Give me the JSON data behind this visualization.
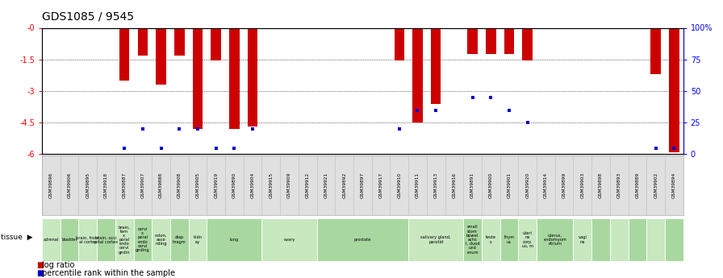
{
  "title": "GDS1085 / 9545",
  "gsm_labels": [
    "GSM39896",
    "GSM39906",
    "GSM39895",
    "GSM39918",
    "GSM39887",
    "GSM39907",
    "GSM39888",
    "GSM39908",
    "GSM39905",
    "GSM39919",
    "GSM39890",
    "GSM39904",
    "GSM39915",
    "GSM39909",
    "GSM39912",
    "GSM39921",
    "GSM39892",
    "GSM39897",
    "GSM39917",
    "GSM39910",
    "GSM39911",
    "GSM39913",
    "GSM39916",
    "GSM39891",
    "GSM39900",
    "GSM39901",
    "GSM39920",
    "GSM39914",
    "GSM39899",
    "GSM39903",
    "GSM39898",
    "GSM39893",
    "GSM39889",
    "GSM39902",
    "GSM39894"
  ],
  "log_ratio": [
    0,
    0,
    0,
    0,
    -2.5,
    -1.3,
    -2.7,
    -1.3,
    -4.8,
    -1.55,
    -4.8,
    -4.7,
    0,
    0,
    0,
    0,
    0,
    0,
    0,
    -1.55,
    -4.5,
    -3.6,
    0,
    -1.25,
    -1.25,
    -1.25,
    -1.55,
    0,
    0,
    0,
    0,
    0,
    0,
    -2.2,
    -5.9
  ],
  "percentile": [
    -1,
    -1,
    -1,
    -1,
    5,
    20,
    5,
    20,
    20,
    5,
    5,
    20,
    -1,
    -1,
    -1,
    -1,
    -1,
    -1,
    -1,
    20,
    35,
    35,
    -1,
    45,
    45,
    35,
    25,
    -1,
    -1,
    -1,
    -1,
    -1,
    -1,
    5,
    5
  ],
  "tissue_groups": [
    {
      "label": "adrenal",
      "start": 0,
      "end": 1,
      "ci": 0
    },
    {
      "label": "bladder",
      "start": 1,
      "end": 2,
      "ci": 1
    },
    {
      "label": "brain, front\nal cortex",
      "start": 2,
      "end": 3,
      "ci": 0
    },
    {
      "label": "brain, occi\npital cortex",
      "start": 3,
      "end": 4,
      "ci": 1
    },
    {
      "label": "brain,\ntem\nx,\nporal\nendo\ncervi\ngndin",
      "start": 4,
      "end": 5,
      "ci": 0
    },
    {
      "label": "cervi\nx,\nporal\nendo\ncervi\ngnding",
      "start": 5,
      "end": 6,
      "ci": 1
    },
    {
      "label": "colon,\nasce\nnding",
      "start": 6,
      "end": 7,
      "ci": 0
    },
    {
      "label": "diap\nhragm",
      "start": 7,
      "end": 8,
      "ci": 1
    },
    {
      "label": "kidn\ney",
      "start": 8,
      "end": 9,
      "ci": 0
    },
    {
      "label": "lung",
      "start": 9,
      "end": 12,
      "ci": 1
    },
    {
      "label": "ovary",
      "start": 12,
      "end": 15,
      "ci": 0
    },
    {
      "label": "prostate",
      "start": 15,
      "end": 20,
      "ci": 1
    },
    {
      "label": "salivary gland,\nparotid",
      "start": 20,
      "end": 23,
      "ci": 0
    },
    {
      "label": "small\nstom\nbowel\nachs\nl, duod\nund\nenum",
      "start": 23,
      "end": 24,
      "ci": 1
    },
    {
      "label": "teste\ns",
      "start": 24,
      "end": 25,
      "ci": 0
    },
    {
      "label": "thym\nus",
      "start": 25,
      "end": 26,
      "ci": 1
    },
    {
      "label": "uteri\nne\ncorp\nus, m",
      "start": 26,
      "end": 27,
      "ci": 0
    },
    {
      "label": "uterus,\nendomyom\netrium",
      "start": 27,
      "end": 29,
      "ci": 1
    },
    {
      "label": "vagi\nna",
      "start": 29,
      "end": 30,
      "ci": 0
    },
    {
      "label": "",
      "start": 30,
      "end": 31,
      "ci": 1
    },
    {
      "label": "",
      "start": 31,
      "end": 32,
      "ci": 0
    },
    {
      "label": "",
      "start": 32,
      "end": 33,
      "ci": 1
    },
    {
      "label": "",
      "start": 33,
      "end": 34,
      "ci": 0
    },
    {
      "label": "",
      "start": 34,
      "end": 35,
      "ci": 1
    }
  ],
  "tcolors": [
    "#c8e8c0",
    "#a8d8a0"
  ],
  "ylim_left": [
    -6,
    0
  ],
  "ylim_right": [
    0,
    100
  ],
  "bar_color": "#cc0000",
  "dot_color": "#0000cc",
  "background_color": "#ffffff",
  "title_fontsize": 10,
  "bar_width": 0.55,
  "yticks_left": [
    0,
    -1.5,
    -3,
    -4.5,
    -6
  ],
  "ytick_labels_left": [
    "-0",
    "-1.5",
    "-3",
    "-4.5",
    "-6"
  ],
  "yticks_right": [
    0,
    25,
    50,
    75,
    100
  ],
  "ytick_labels_right": [
    "0",
    "25",
    "50",
    "75",
    "100%"
  ]
}
